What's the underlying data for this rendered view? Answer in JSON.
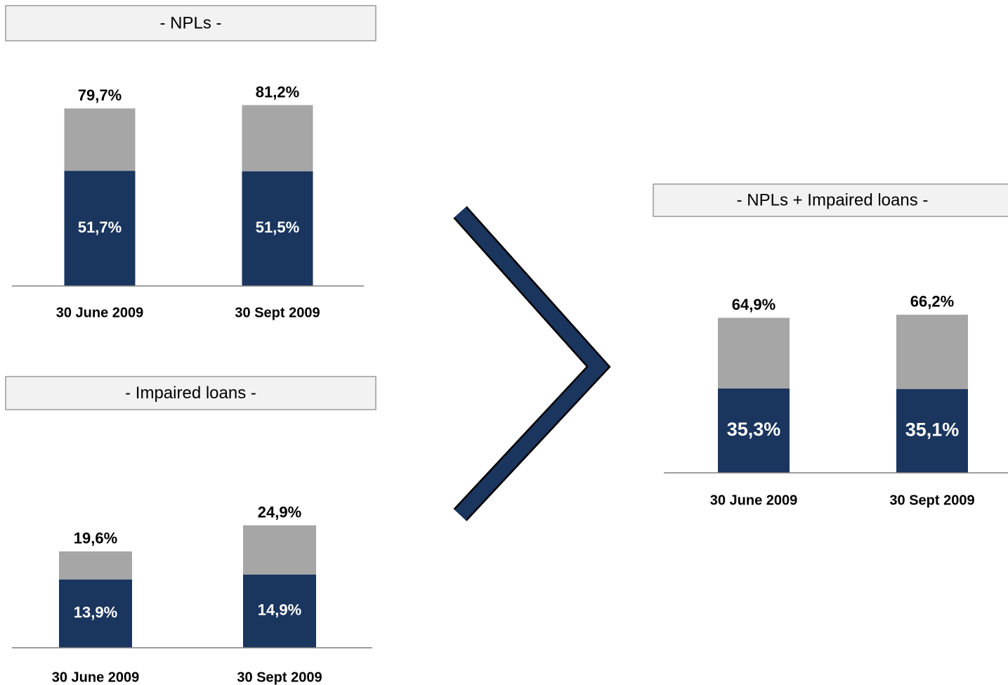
{
  "chart_data": [
    {
      "type": "bar",
      "stacked": true,
      "title": "- NPLs -",
      "categories": [
        "30 June 2009",
        "30 Sept 2009"
      ],
      "series": [
        {
          "color": "#1a355e",
          "values": [
            51.7,
            51.5
          ],
          "value_labels": [
            "51,7%",
            "51,5%"
          ]
        },
        {
          "color": "#a6a6a6",
          "values": [
            28.0,
            29.7
          ]
        }
      ],
      "totals": [
        79.7,
        81.2
      ],
      "total_labels": [
        "79,7%",
        "81,2%"
      ],
      "ylim": [
        0,
        100
      ]
    },
    {
      "type": "bar",
      "stacked": true,
      "title": "- Impaired loans -",
      "categories": [
        "30 June 2009",
        "30 Sept 2009"
      ],
      "series": [
        {
          "color": "#1a355e",
          "values": [
            13.9,
            14.9
          ],
          "value_labels": [
            "13,9%",
            "14,9%"
          ]
        },
        {
          "color": "#a6a6a6",
          "values": [
            5.7,
            10.0
          ]
        }
      ],
      "totals": [
        19.6,
        24.9
      ],
      "total_labels": [
        "19,6%",
        "24,9%"
      ],
      "ylim": [
        0,
        30
      ]
    },
    {
      "type": "bar",
      "stacked": true,
      "title": "- NPLs + Impaired loans -",
      "categories": [
        "30 June 2009",
        "30 Sept 2009"
      ],
      "series": [
        {
          "color": "#1a355e",
          "values": [
            35.3,
            35.1
          ],
          "value_labels": [
            "35,3%",
            "35,1%"
          ]
        },
        {
          "color": "#a6a6a6",
          "values": [
            29.6,
            31.1
          ]
        }
      ],
      "totals": [
        64.9,
        66.2
      ],
      "total_labels": [
        "64,9%",
        "66,2%"
      ],
      "ylim": [
        0,
        100
      ]
    }
  ]
}
